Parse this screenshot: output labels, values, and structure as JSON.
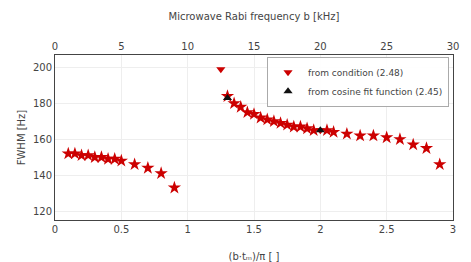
{
  "chart_data": {
    "type": "scatter",
    "xlabel": "(b·tₘ)/π [ ]",
    "ylabel": "FWHM [Hz]",
    "x2label": "Microwave Rabi frequency b [kHz]",
    "xlim": [
      0.0,
      3.0
    ],
    "ylim": [
      115,
      207
    ],
    "xticks": [
      0.0,
      0.5,
      1.0,
      1.5,
      2.0,
      2.5,
      3.0
    ],
    "yticks": [
      120,
      140,
      160,
      180,
      200
    ],
    "x2lim": [
      0.0,
      3.0
    ],
    "x2ticks": [
      {
        "value": 0.0,
        "label": "0"
      },
      {
        "value": 0.5,
        "label": "5"
      },
      {
        "value": 1.0,
        "label": "10"
      },
      {
        "value": 1.5,
        "label": "15"
      },
      {
        "value": 2.0,
        "label": "20"
      },
      {
        "value": 2.5,
        "label": "25"
      },
      {
        "value": 3.0,
        "label": "30"
      }
    ],
    "grid": true,
    "legend": "upper right",
    "series": [
      {
        "color": "#cc0000",
        "marker": "star",
        "x": [
          0.1,
          0.15,
          0.2,
          0.25,
          0.3,
          0.35,
          0.4,
          0.45,
          0.5,
          0.6,
          0.7,
          0.8,
          0.9,
          1.3,
          1.35,
          1.4,
          1.45,
          1.5,
          1.55,
          1.6,
          1.65,
          1.7,
          1.75,
          1.8,
          1.85,
          1.9,
          1.95,
          2.05,
          2.1,
          2.2,
          2.3,
          2.4,
          2.5,
          2.6,
          2.7,
          2.8
        ],
        "values": [
          152,
          152,
          151,
          151,
          150,
          150,
          149,
          149,
          148,
          146,
          144,
          141,
          133,
          184,
          180,
          178,
          175,
          174,
          172,
          171,
          170,
          169,
          168,
          167,
          167,
          166,
          165,
          165,
          164,
          163,
          162,
          162,
          161,
          160,
          157,
          155
        ]
      },
      {
        "color": "#cc0000",
        "marker": "star",
        "x": [
          2.9
        ],
        "values": [
          146
        ]
      },
      {
        "name": "from condition (2.48)",
        "color": "#cc0000",
        "marker": "triangle-down",
        "x": [
          1.25,
          2.0
        ],
        "values": [
          199,
          165
        ]
      },
      {
        "name": "from cosine fit function (2.45)",
        "color": "#111111",
        "marker": "triangle-up",
        "x": [
          1.3,
          2.0
        ],
        "values": [
          183,
          165
        ]
      }
    ]
  }
}
